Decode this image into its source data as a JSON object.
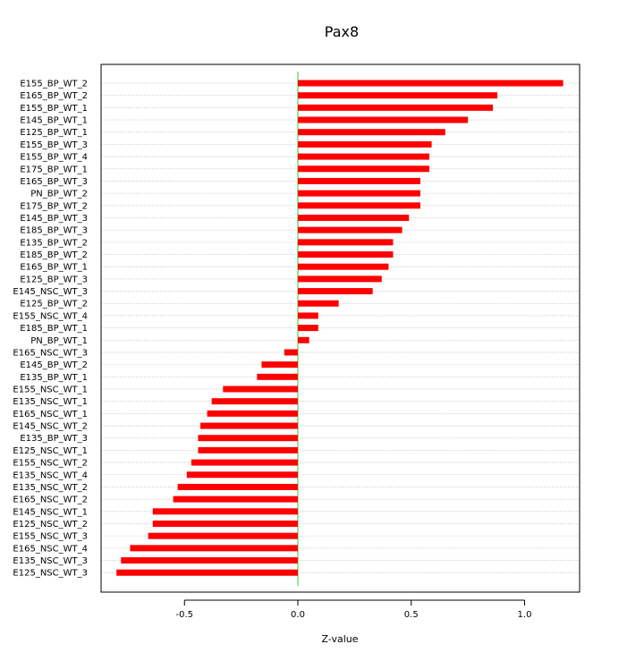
{
  "chart_data": {
    "type": "bar",
    "orientation": "horizontal",
    "title": "Pax8",
    "xlabel": "Z-value",
    "ylabel": "",
    "xlim": [
      -0.88,
      1.25
    ],
    "xticks": [
      -0.5,
      0.0,
      0.5,
      1.0
    ],
    "xtick_labels": [
      "-0.5",
      "0.0",
      "0.5",
      "1.0"
    ],
    "grid": "horizontal dotted",
    "bar_color": "#ff0000",
    "zero_line_color": "#33cc33",
    "categories": [
      "E155_BP_WT_2",
      "E165_BP_WT_2",
      "E155_BP_WT_1",
      "E145_BP_WT_1",
      "E125_BP_WT_1",
      "E155_BP_WT_3",
      "E155_BP_WT_4",
      "E175_BP_WT_1",
      "E165_BP_WT_3",
      "PN_BP_WT_2",
      "E175_BP_WT_2",
      "E145_BP_WT_3",
      "E185_BP_WT_3",
      "E135_BP_WT_2",
      "E185_BP_WT_2",
      "E165_BP_WT_1",
      "E125_BP_WT_3",
      "E145_NSC_WT_3",
      "E125_BP_WT_2",
      "E155_NSC_WT_4",
      "E185_BP_WT_1",
      "PN_BP_WT_1",
      "E165_NSC_WT_3",
      "E145_BP_WT_2",
      "E135_BP_WT_1",
      "E155_NSC_WT_1",
      "E135_NSC_WT_1",
      "E165_NSC_WT_1",
      "E145_NSC_WT_2",
      "E135_BP_WT_3",
      "E125_NSC_WT_1",
      "E155_NSC_WT_2",
      "E135_NSC_WT_4",
      "E135_NSC_WT_2",
      "E165_NSC_WT_2",
      "E145_NSC_WT_1",
      "E125_NSC_WT_2",
      "E155_NSC_WT_3",
      "E165_NSC_WT_4",
      "E135_NSC_WT_3",
      "E125_NSC_WT_3"
    ],
    "values": [
      1.17,
      0.88,
      0.86,
      0.75,
      0.65,
      0.59,
      0.58,
      0.58,
      0.54,
      0.54,
      0.54,
      0.49,
      0.46,
      0.42,
      0.42,
      0.4,
      0.37,
      0.33,
      0.18,
      0.09,
      0.09,
      0.05,
      -0.06,
      -0.16,
      -0.18,
      -0.33,
      -0.38,
      -0.4,
      -0.43,
      -0.44,
      -0.44,
      -0.47,
      -0.49,
      -0.53,
      -0.55,
      -0.64,
      -0.64,
      -0.66,
      -0.74,
      -0.78,
      -0.8
    ]
  }
}
